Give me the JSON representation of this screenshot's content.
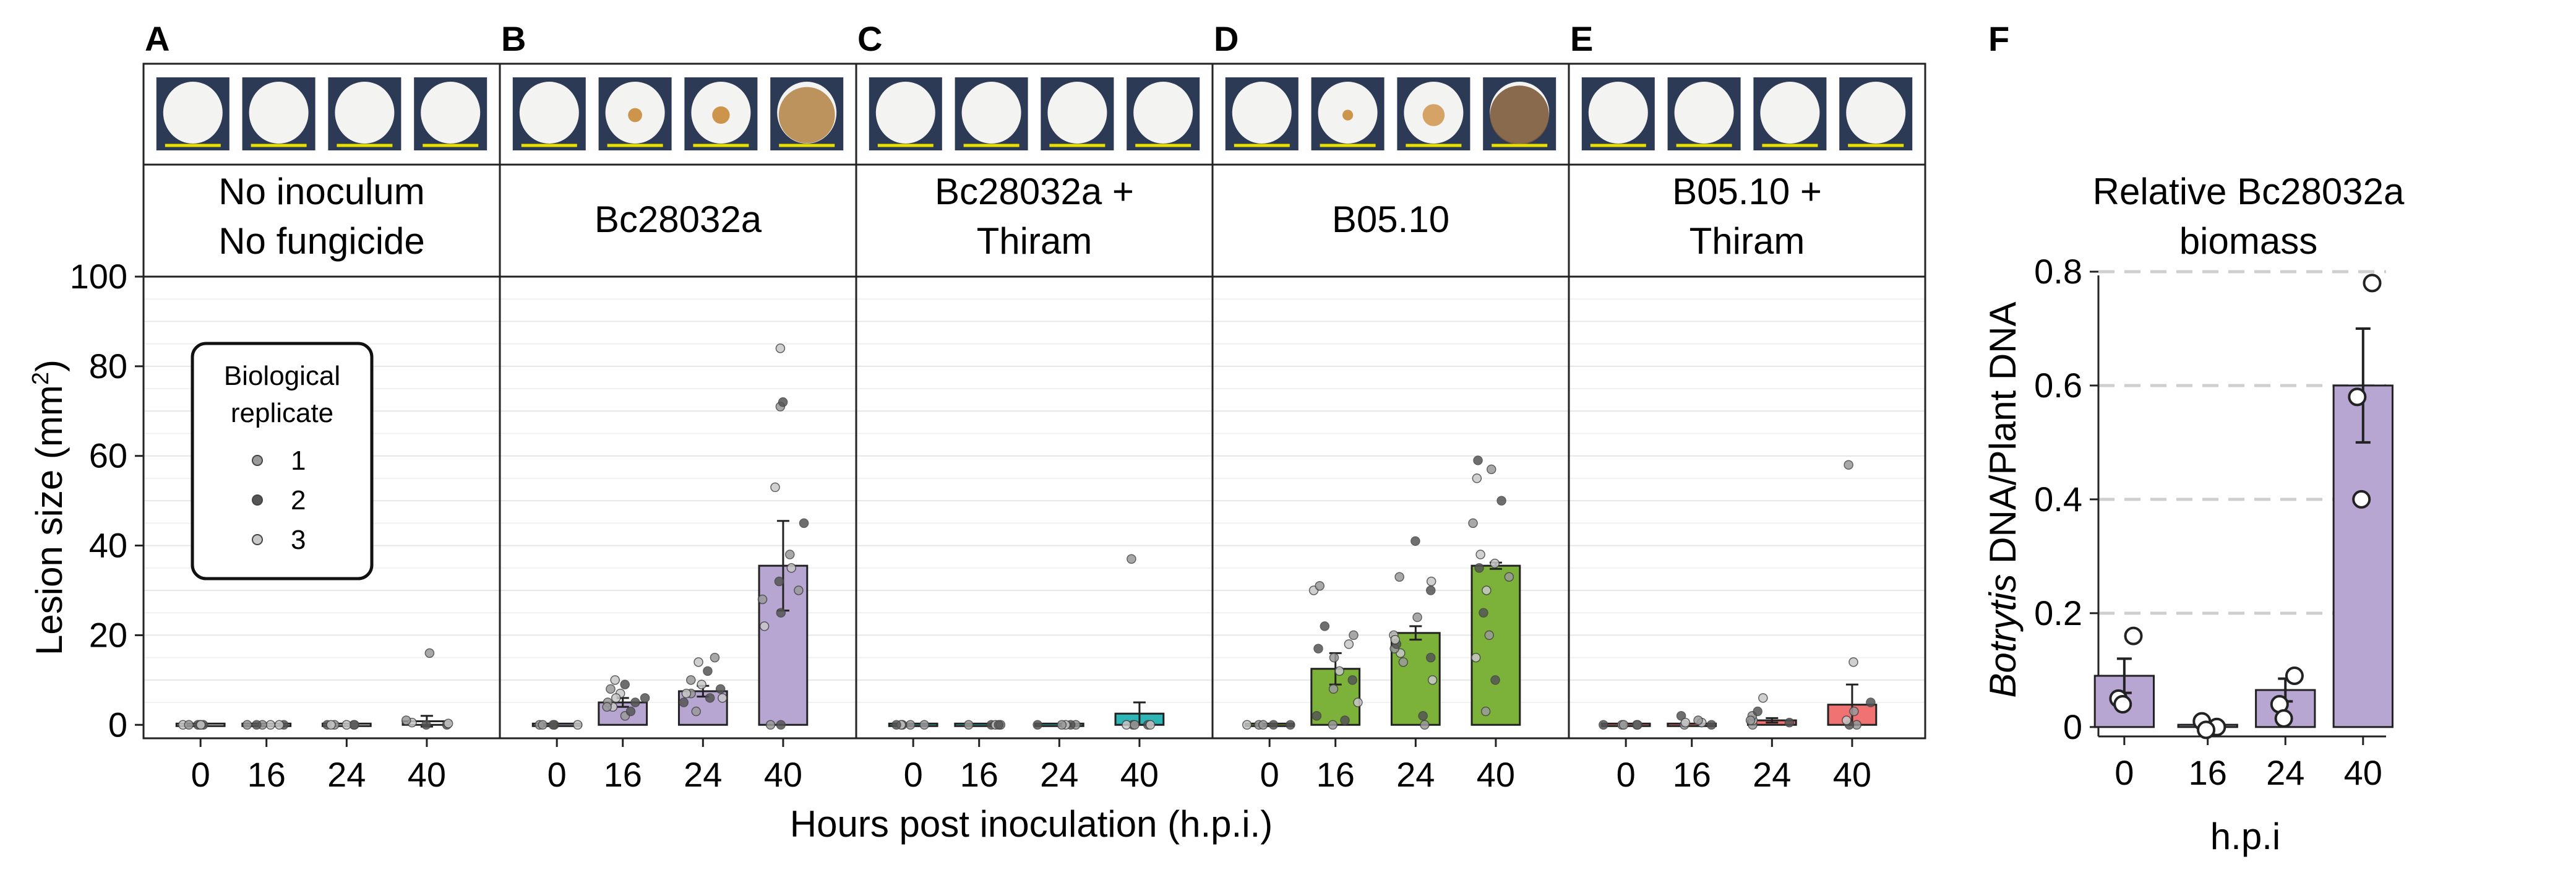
{
  "panel_letters": [
    "A",
    "B",
    "C",
    "D",
    "E",
    "F"
  ],
  "panel_titles": {
    "A": [
      "No inoculum",
      "No fungicide"
    ],
    "B": [
      "Bc28032a"
    ],
    "C": [
      "Bc28032a +",
      "Thiram"
    ],
    "D": [
      "B05.10"
    ],
    "E": [
      "B05.10 +",
      "Thiram"
    ],
    "F": [
      "Relative Bc28032a",
      "biomass"
    ]
  },
  "legend": {
    "title": [
      "Biological",
      "replicate"
    ],
    "items": [
      "1",
      "2",
      "3"
    ],
    "marker_colors": [
      "#9a9a9a",
      "#555555",
      "#c8c8c8"
    ]
  },
  "axes": {
    "lesion_ylabel_main": "Lesion size (mm",
    "lesion_ylabel_sup": "2",
    "lesion_ylabel_end": ")",
    "lesion_xlabel": "Hours post inoculation (h.p.i.)",
    "biomass_ylabel_italic": "Botrytis",
    "biomass_ylabel_rest": " DNA/Plant DNA",
    "biomass_xlabel": "h.p.i"
  },
  "chart_data": [
    {
      "type": "bar",
      "panel": "A-E",
      "title": "",
      "xlabel": "Hours post inoculation (h.p.i.)",
      "ylabel": "Lesion size (mm2)",
      "ylim": [
        -3,
        100
      ],
      "yticks": [
        0,
        20,
        40,
        60,
        80,
        100
      ],
      "categories": [
        "0",
        "16",
        "24",
        "40"
      ],
      "grid": true,
      "legend_position": "upper-left",
      "series": [
        {
          "name": "No inoculum No fungicide",
          "color": "#ffffff",
          "values": [
            0,
            0,
            0,
            0.8
          ],
          "errors": [
            0,
            0,
            0,
            1.2
          ],
          "points": [
            [
              0,
              0,
              0,
              0,
              0,
              0
            ],
            [
              0,
              0,
              0,
              0,
              0,
              0
            ],
            [
              0,
              0,
              0,
              0,
              0,
              0
            ],
            [
              16,
              0,
              0.5,
              1,
              0,
              0.3
            ]
          ]
        },
        {
          "name": "Bc28032a",
          "color": "#b6a6d1",
          "values": [
            0,
            5,
            7.5,
            35.5
          ],
          "errors": [
            0,
            1,
            1.2,
            10
          ],
          "points": [
            [
              0,
              0,
              0,
              0,
              0
            ],
            [
              2,
              3,
              4,
              5,
              6,
              7,
              8,
              9,
              10,
              4,
              5,
              6
            ],
            [
              3,
              5,
              6,
              7,
              8,
              9,
              10,
              12,
              14,
              15,
              6,
              7
            ],
            [
              0,
              0,
              22,
              28,
              32,
              35,
              38,
              45,
              53,
              71,
              72,
              84,
              30,
              25
            ]
          ]
        },
        {
          "name": "Bc28032a + Thiram",
          "color": "#2eb5b5",
          "values": [
            0,
            0,
            0,
            2.5
          ],
          "errors": [
            0,
            0,
            0,
            2.5
          ],
          "points": [
            [
              0,
              0,
              0,
              0,
              0
            ],
            [
              0,
              0,
              0,
              0,
              0
            ],
            [
              0,
              0,
              0,
              0,
              0
            ],
            [
              37,
              0,
              0,
              0,
              0,
              0
            ]
          ]
        },
        {
          "name": "B05.10",
          "color": "#7db23a",
          "values": [
            0,
            12.5,
            20.5,
            35.5
          ],
          "errors": [
            0,
            3.5,
            1.5,
            0.7
          ],
          "points": [
            [
              0,
              0,
              0,
              0,
              0
            ],
            [
              0,
              2,
              5,
              8,
              10,
              12,
              15,
              17,
              18,
              20,
              22,
              30,
              31,
              1
            ],
            [
              0,
              2,
              10,
              14,
              15,
              16,
              17,
              18,
              20,
              24,
              30,
              32,
              33,
              41,
              19
            ],
            [
              3,
              10,
              15,
              20,
              25,
              30,
              33,
              35,
              38,
              45,
              50,
              55,
              57,
              59,
              36
            ]
          ]
        },
        {
          "name": "B05.10 + Thiram",
          "color": "#f07272",
          "values": [
            0,
            0,
            1,
            4.5
          ],
          "errors": [
            0,
            0,
            0.5,
            4.5
          ],
          "points": [
            [
              0,
              0,
              0,
              0,
              0
            ],
            [
              0,
              0,
              0.5,
              1,
              2,
              0.5
            ],
            [
              0,
              0.5,
              1,
              2,
              3,
              6,
              1
            ],
            [
              0,
              0,
              1,
              3,
              5,
              14,
              58
            ]
          ]
        }
      ]
    },
    {
      "type": "bar",
      "panel": "F",
      "title": "Relative Bc28032a biomass",
      "xlabel": "h.p.i",
      "ylabel": "Botrytis DNA/Plant DNA",
      "ylim": [
        -0.01,
        0.8
      ],
      "yticks": [
        0,
        0.2,
        0.4,
        0.6,
        0.8
      ],
      "ytick_labels": [
        "0",
        "0.2",
        "0.4",
        "0.6",
        "0.8"
      ],
      "categories": [
        "0",
        "16",
        "24",
        "40"
      ],
      "grid": "dashed",
      "color": "#b6a6d1",
      "values": [
        0.09,
        0.004,
        0.065,
        0.6
      ],
      "errors": [
        0.03,
        0.003,
        0.02,
        0.1
      ],
      "points": [
        [
          0.16,
          0.05,
          0.04
        ],
        [
          0.0,
          0.01,
          -0.005
        ],
        [
          0.09,
          0.04,
          0.015
        ],
        [
          0.78,
          0.58,
          0.4
        ]
      ]
    }
  ]
}
